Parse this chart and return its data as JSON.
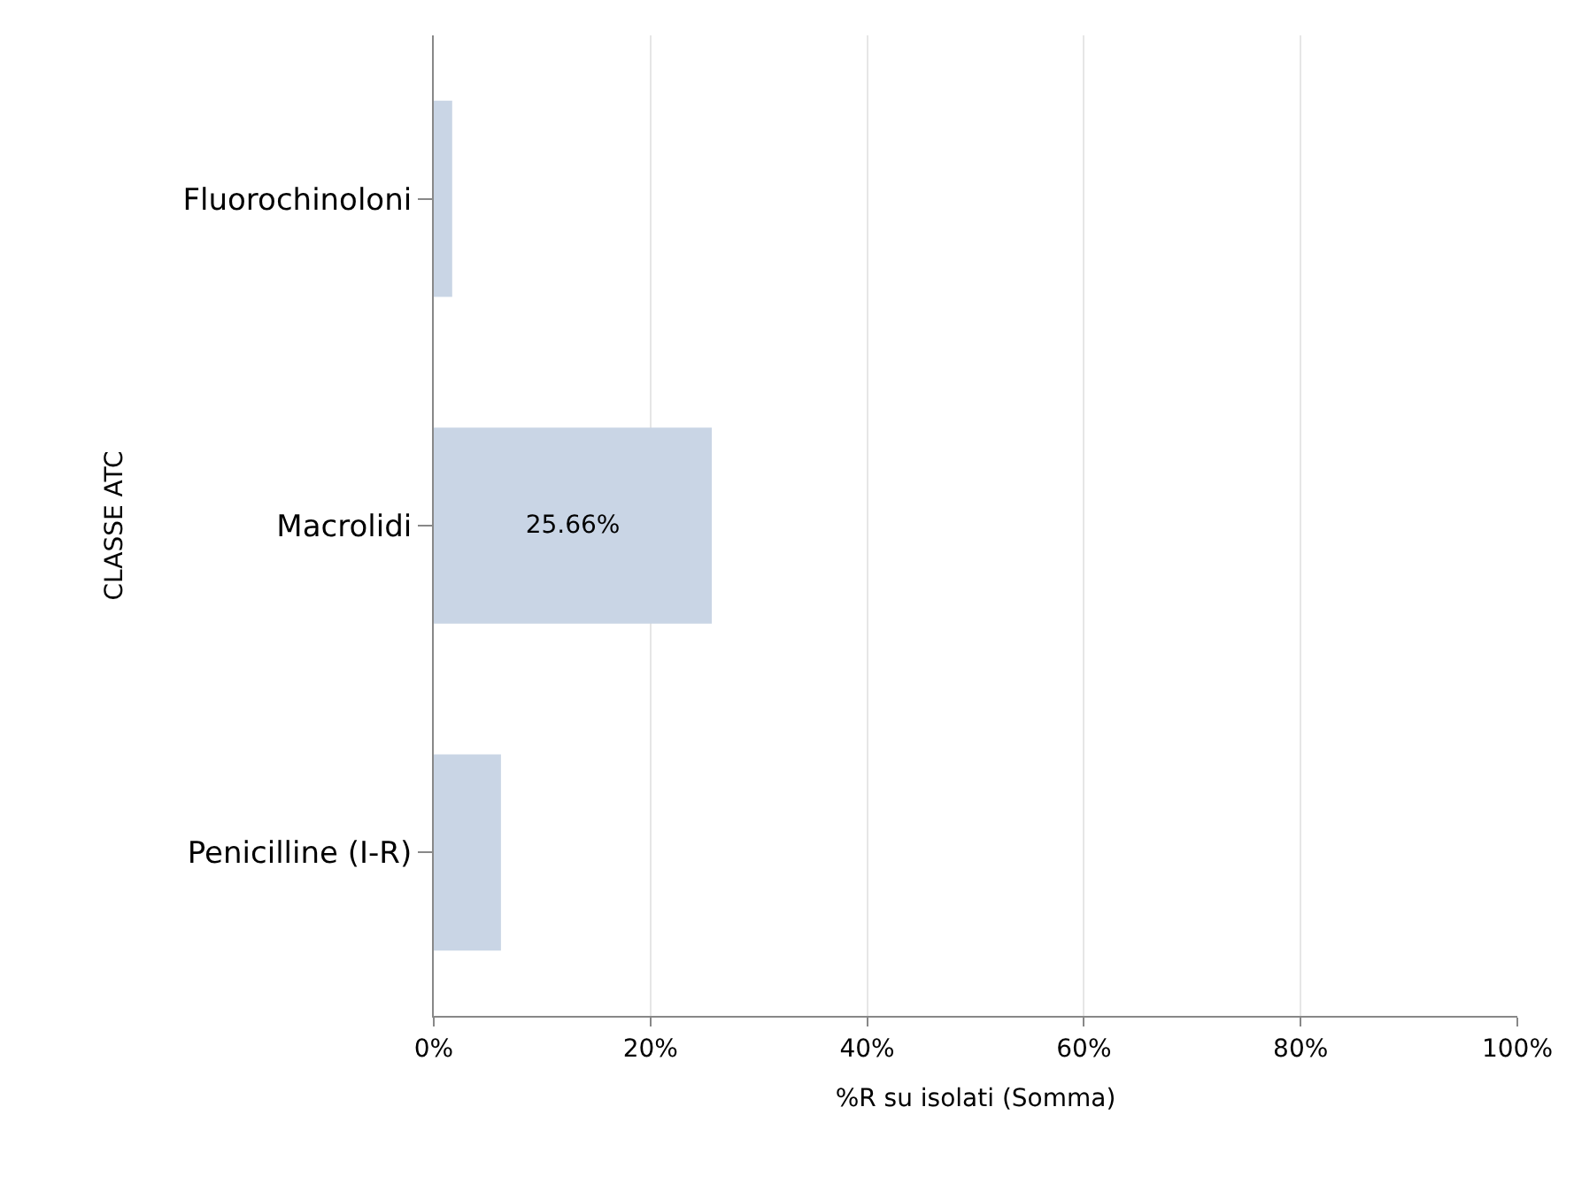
{
  "chart_data": {
    "type": "bar",
    "orientation": "horizontal",
    "xlabel": "%R su isolati (Somma)",
    "ylabel": "CLASSE ATC",
    "categories": [
      "Fluorochinoloni",
      "Macrolidi",
      "Penicilline (I-R)"
    ],
    "values": [
      1.7,
      25.66,
      6.2
    ],
    "color": "#c9d5e5",
    "value_labels": [
      null,
      "25.66%",
      null
    ],
    "xlim": [
      0,
      100
    ],
    "xticks": [
      {
        "value": 0,
        "label": "0%"
      },
      {
        "value": 20,
        "label": "20%"
      },
      {
        "value": 40,
        "label": "40%"
      },
      {
        "value": 60,
        "label": "60%"
      },
      {
        "value": 80,
        "label": "80%"
      },
      {
        "value": 100,
        "label": "100%"
      }
    ],
    "grid": "x",
    "legend": false
  }
}
